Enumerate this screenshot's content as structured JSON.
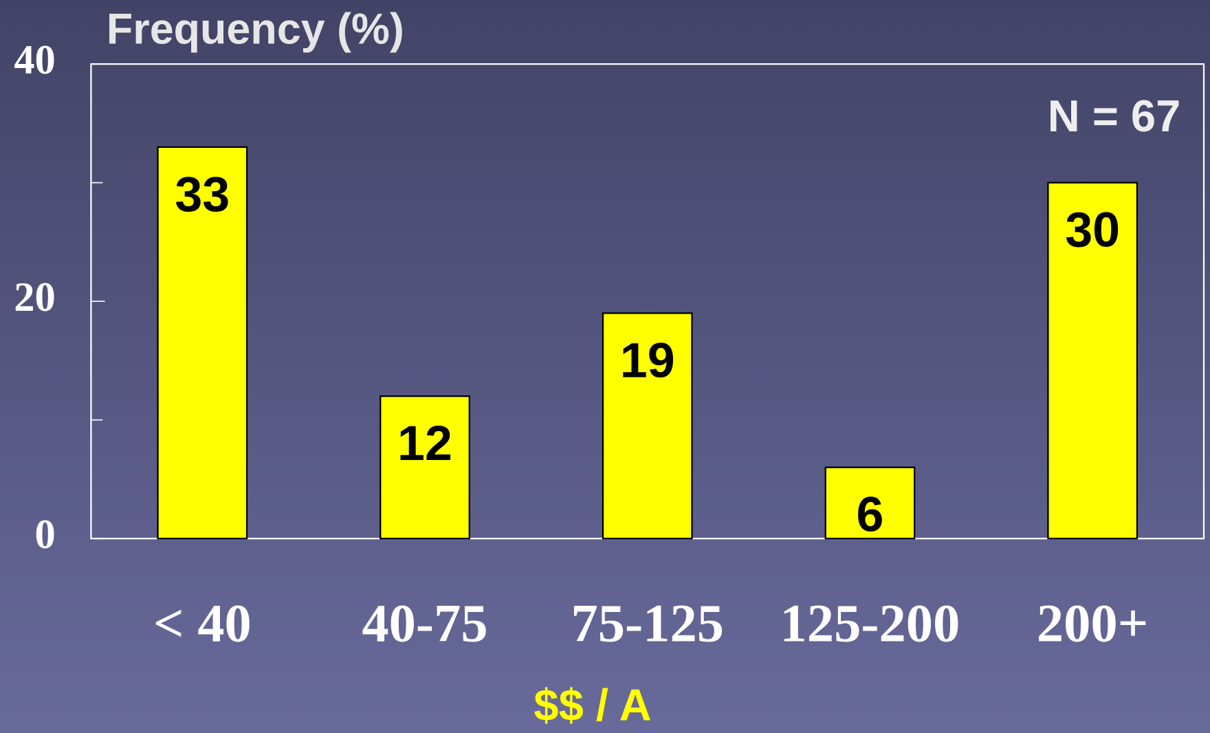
{
  "chart_data": {
    "type": "bar",
    "title": "Frequency (%)",
    "annotation": "N = 67",
    "x_label": "$$ / A",
    "categories": [
      "< 40",
      "40-75",
      "75-125",
      "125-200",
      "200+"
    ],
    "values": [
      33,
      12,
      19,
      6,
      30
    ],
    "color": "#ffff00",
    "ylim": [
      0,
      40
    ],
    "yticks": [
      0,
      20,
      40
    ],
    "minor_yticks": [
      10,
      30
    ],
    "grid": false
  }
}
